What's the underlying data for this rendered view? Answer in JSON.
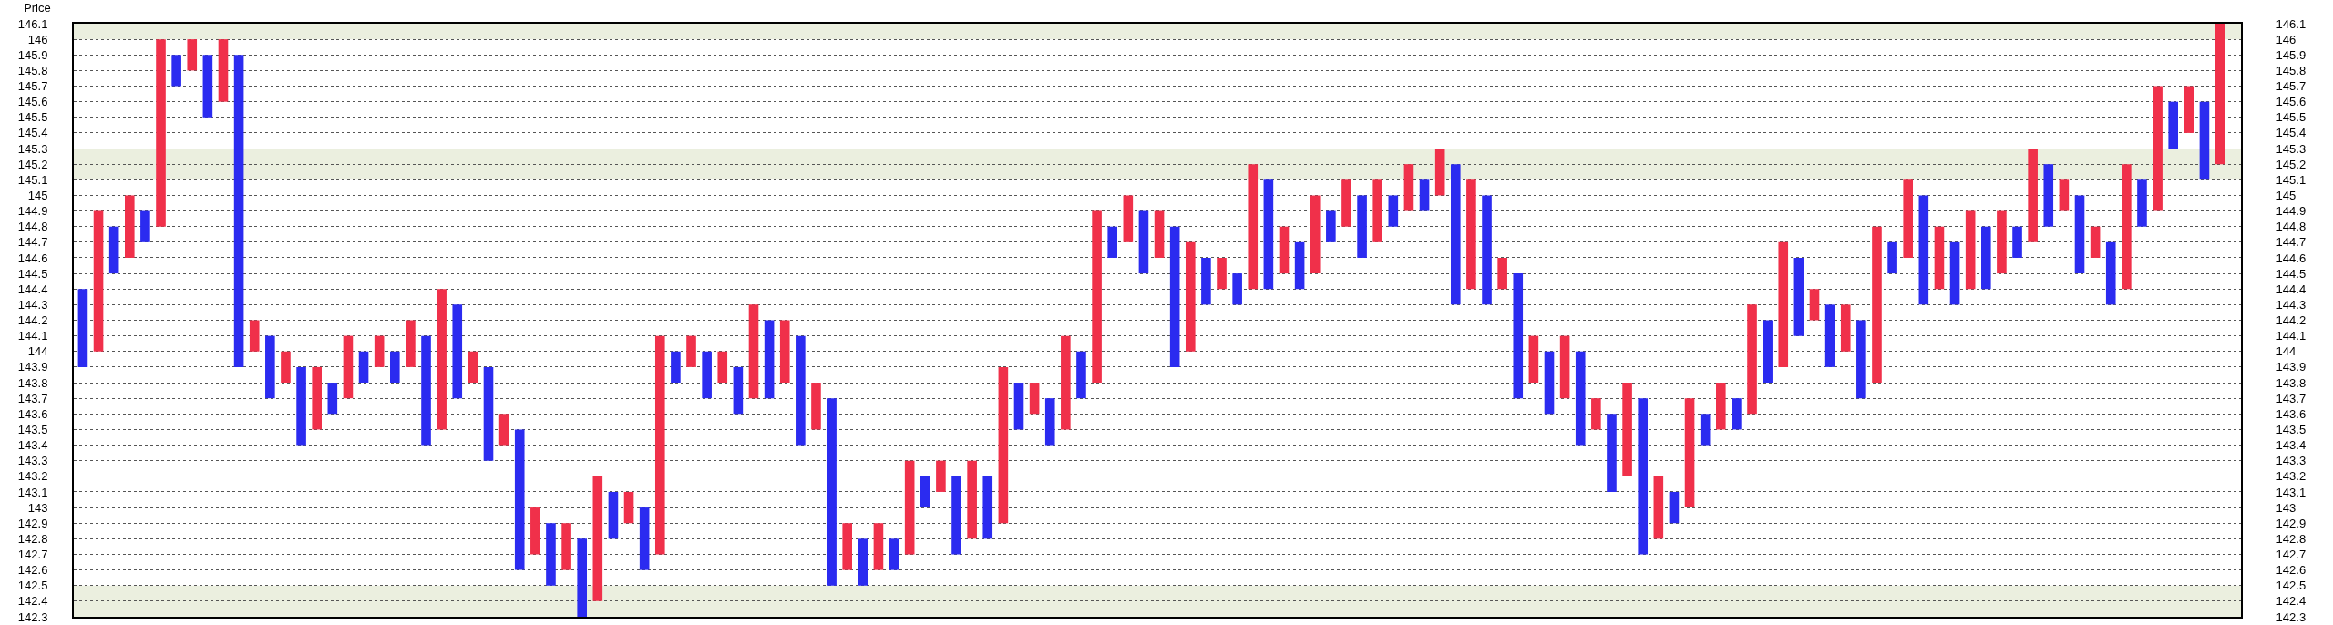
{
  "chart_data": {
    "type": "bar",
    "ylabel": "Price",
    "ylim": [
      142.3,
      146.1
    ],
    "y2lim": [
      142.3,
      146.1
    ],
    "yticks": [
      142.3,
      142.4,
      142.5,
      142.6,
      142.7,
      142.8,
      142.9,
      143,
      143.1,
      143.2,
      143.3,
      143.4,
      143.5,
      143.6,
      143.7,
      143.8,
      143.9,
      144,
      144.1,
      144.2,
      144.3,
      144.4,
      144.5,
      144.6,
      144.7,
      144.8,
      144.9,
      145,
      145.1,
      145.2,
      145.3,
      145.4,
      145.5,
      145.6,
      145.7,
      145.8,
      145.9,
      146,
      146.1
    ],
    "y2ticks": [
      142.3,
      142.4,
      142.5,
      142.6,
      142.7,
      142.8,
      142.9,
      143,
      143.1,
      143.2,
      143.3,
      143.4,
      143.5,
      143.6,
      143.7,
      143.8,
      143.9,
      144,
      144.1,
      144.2,
      144.3,
      144.4,
      144.5,
      144.6,
      144.7,
      144.8,
      144.9,
      145,
      145.1,
      145.2,
      145.3,
      145.4,
      145.5,
      145.6,
      145.7,
      145.8,
      145.9,
      146,
      146.1
    ],
    "tick_labels": "y",
    "grid": "y",
    "bands": [
      {
        "axis": "y",
        "from": 146,
        "to": 146.1,
        "color": "#ebefdf"
      },
      {
        "axis": "y",
        "from": 145.1,
        "to": 145.3,
        "color": "#ebefdf"
      },
      {
        "axis": "y",
        "from": 142.3,
        "to": 142.5,
        "color": "#ebefdf"
      }
    ],
    "categories": [
      null,
      null,
      null,
      null,
      null,
      null,
      null,
      null,
      null,
      null,
      null,
      null,
      null,
      null,
      null,
      null,
      null,
      null,
      null,
      null,
      null,
      null,
      null,
      null,
      null,
      null,
      null,
      null,
      null,
      null,
      null,
      null,
      null,
      null,
      null,
      null,
      null,
      null,
      null,
      null,
      null,
      null,
      null,
      null,
      null,
      null,
      null,
      null,
      null,
      null,
      null,
      null,
      null,
      null,
      null,
      null,
      null,
      null,
      null,
      null,
      null,
      null,
      null,
      null,
      null,
      null,
      null,
      null,
      null,
      null,
      null,
      null,
      null,
      null,
      null,
      null,
      null,
      null,
      null,
      null,
      null,
      null,
      null,
      null,
      null,
      null,
      null,
      null,
      null,
      null,
      null,
      null,
      null,
      null,
      null,
      null,
      null,
      null,
      null,
      null,
      null,
      null,
      null,
      null,
      null,
      null,
      null,
      null,
      null,
      null,
      null,
      null,
      null,
      null,
      null,
      null,
      null,
      null,
      null,
      null,
      null,
      null,
      null,
      null,
      null,
      null,
      null,
      null,
      null,
      null,
      null,
      null,
      null,
      null,
      null,
      null,
      null,
      null
    ],
    "base": [
      143.9,
      144.0,
      144.5,
      144.6,
      144.7,
      144.8,
      145.7,
      145.8,
      145.5,
      145.6,
      143.9,
      144.0,
      143.7,
      143.8,
      143.4,
      143.5,
      143.6,
      143.7,
      143.8,
      143.9,
      143.8,
      143.9,
      143.4,
      143.5,
      143.7,
      143.8,
      143.3,
      143.4,
      142.6,
      142.7,
      142.5,
      142.6,
      142.3,
      142.4,
      142.8,
      142.9,
      142.6,
      142.7,
      143.8,
      143.9,
      143.7,
      143.8,
      143.6,
      143.7,
      143.7,
      143.8,
      143.4,
      143.5,
      142.5,
      142.6,
      142.5,
      142.6,
      142.6,
      142.7,
      143.0,
      143.1,
      142.7,
      142.8,
      142.8,
      142.9,
      143.5,
      143.6,
      143.4,
      143.5,
      143.7,
      143.8,
      144.6,
      144.7,
      144.5,
      144.6,
      143.9,
      144.0,
      144.3,
      144.4,
      144.3,
      144.4,
      144.4,
      144.5,
      144.4,
      144.5,
      144.7,
      144.8,
      144.6,
      144.7,
      144.8,
      144.9,
      144.9,
      145.0,
      144.3,
      144.4,
      144.3,
      144.4,
      143.7,
      143.8,
      143.6,
      143.7,
      143.4,
      143.5,
      143.1,
      143.2,
      142.7,
      142.8,
      142.9,
      143.0,
      143.4,
      143.5,
      143.5,
      143.6,
      143.8,
      143.9,
      144.1,
      144.2,
      143.9,
      144.0,
      143.7,
      143.8,
      144.5,
      144.6,
      144.3,
      144.4,
      144.3,
      144.4,
      144.4,
      144.5,
      144.6,
      144.7,
      144.8,
      144.9,
      144.5,
      144.6,
      144.3,
      144.4,
      144.8,
      144.9,
      145.3,
      145.4,
      145.1,
      145.2
    ],
    "values": [
      0.5,
      0.9,
      0.3,
      0.4,
      0.2,
      1.2,
      0.2,
      0.2,
      0.4,
      0.4,
      2.0,
      0.2,
      0.4,
      0.2,
      0.5,
      0.4,
      0.2,
      0.4,
      0.2,
      0.2,
      0.2,
      0.3,
      0.7,
      0.9,
      0.6,
      0.2,
      0.6,
      0.2,
      0.9,
      0.3,
      0.4,
      0.3,
      0.5,
      0.8,
      0.3,
      0.2,
      0.4,
      1.4,
      0.2,
      0.2,
      0.3,
      0.2,
      0.3,
      0.6,
      0.5,
      0.4,
      0.7,
      0.3,
      1.2,
      0.3,
      0.3,
      0.3,
      0.2,
      0.6,
      0.2,
      0.2,
      0.5,
      0.5,
      0.4,
      1.0,
      0.3,
      0.2,
      0.3,
      0.6,
      0.3,
      1.1,
      0.2,
      0.3,
      0.4,
      0.3,
      0.9,
      0.7,
      0.3,
      0.2,
      0.2,
      0.8,
      0.7,
      0.3,
      0.3,
      0.5,
      0.2,
      0.3,
      0.4,
      0.4,
      0.2,
      0.3,
      0.2,
      0.3,
      0.9,
      0.7,
      0.7,
      0.2,
      0.8,
      0.3,
      0.4,
      0.4,
      0.6,
      0.2,
      0.5,
      0.6,
      1.0,
      0.4,
      0.2,
      0.7,
      0.2,
      0.3,
      0.2,
      0.7,
      0.4,
      0.8,
      0.5,
      0.2,
      0.4,
      0.3,
      0.5,
      1.0,
      0.2,
      0.5,
      0.7,
      0.4,
      0.4,
      0.5,
      0.4,
      0.4,
      0.2,
      0.6,
      0.4,
      0.2,
      0.5,
      0.2,
      0.4,
      0.8,
      0.3,
      0.8,
      0.3,
      0.3,
      0.5,
      0.9
    ],
    "colors": [
      "#2b2bf0",
      "#f0304a",
      "#2b2bf0",
      "#f0304a",
      "#2b2bf0",
      "#f0304a",
      "#2b2bf0",
      "#f0304a",
      "#2b2bf0",
      "#f0304a",
      "#2b2bf0",
      "#f0304a",
      "#2b2bf0",
      "#f0304a",
      "#2b2bf0",
      "#f0304a",
      "#2b2bf0",
      "#f0304a",
      "#2b2bf0",
      "#f0304a",
      "#2b2bf0",
      "#f0304a",
      "#2b2bf0",
      "#f0304a",
      "#2b2bf0",
      "#f0304a",
      "#2b2bf0",
      "#f0304a",
      "#2b2bf0",
      "#f0304a",
      "#2b2bf0",
      "#f0304a",
      "#2b2bf0",
      "#f0304a",
      "#2b2bf0",
      "#f0304a",
      "#2b2bf0",
      "#f0304a",
      "#2b2bf0",
      "#f0304a",
      "#2b2bf0",
      "#f0304a",
      "#2b2bf0",
      "#f0304a",
      "#2b2bf0",
      "#f0304a",
      "#2b2bf0",
      "#f0304a",
      "#2b2bf0",
      "#f0304a",
      "#2b2bf0",
      "#f0304a",
      "#2b2bf0",
      "#f0304a",
      "#2b2bf0",
      "#f0304a",
      "#2b2bf0",
      "#f0304a",
      "#2b2bf0",
      "#f0304a",
      "#2b2bf0",
      "#f0304a",
      "#2b2bf0",
      "#f0304a",
      "#2b2bf0",
      "#f0304a",
      "#2b2bf0",
      "#f0304a",
      "#2b2bf0",
      "#f0304a",
      "#2b2bf0",
      "#f0304a",
      "#2b2bf0",
      "#f0304a",
      "#2b2bf0",
      "#f0304a",
      "#2b2bf0",
      "#f0304a",
      "#2b2bf0",
      "#f0304a",
      "#2b2bf0",
      "#f0304a",
      "#2b2bf0",
      "#f0304a",
      "#2b2bf0",
      "#f0304a",
      "#2b2bf0",
      "#f0304a",
      "#2b2bf0",
      "#f0304a",
      "#2b2bf0",
      "#f0304a",
      "#2b2bf0",
      "#f0304a",
      "#2b2bf0",
      "#f0304a",
      "#2b2bf0",
      "#f0304a",
      "#2b2bf0",
      "#f0304a",
      "#2b2bf0",
      "#f0304a",
      "#2b2bf0",
      "#f0304a",
      "#2b2bf0",
      "#f0304a",
      "#2b2bf0",
      "#f0304a",
      "#2b2bf0",
      "#f0304a",
      "#2b2bf0",
      "#f0304a",
      "#2b2bf0",
      "#f0304a",
      "#2b2bf0",
      "#f0304a",
      "#2b2bf0",
      "#f0304a",
      "#2b2bf0",
      "#f0304a",
      "#2b2bf0",
      "#f0304a",
      "#2b2bf0",
      "#f0304a",
      "#2b2bf0",
      "#f0304a",
      "#2b2bf0",
      "#f0304a",
      "#2b2bf0",
      "#f0304a",
      "#2b2bf0",
      "#f0304a",
      "#2b2bf0",
      "#f0304a",
      "#2b2bf0",
      "#f0304a",
      "#2b2bf0",
      "#f0304a"
    ]
  }
}
